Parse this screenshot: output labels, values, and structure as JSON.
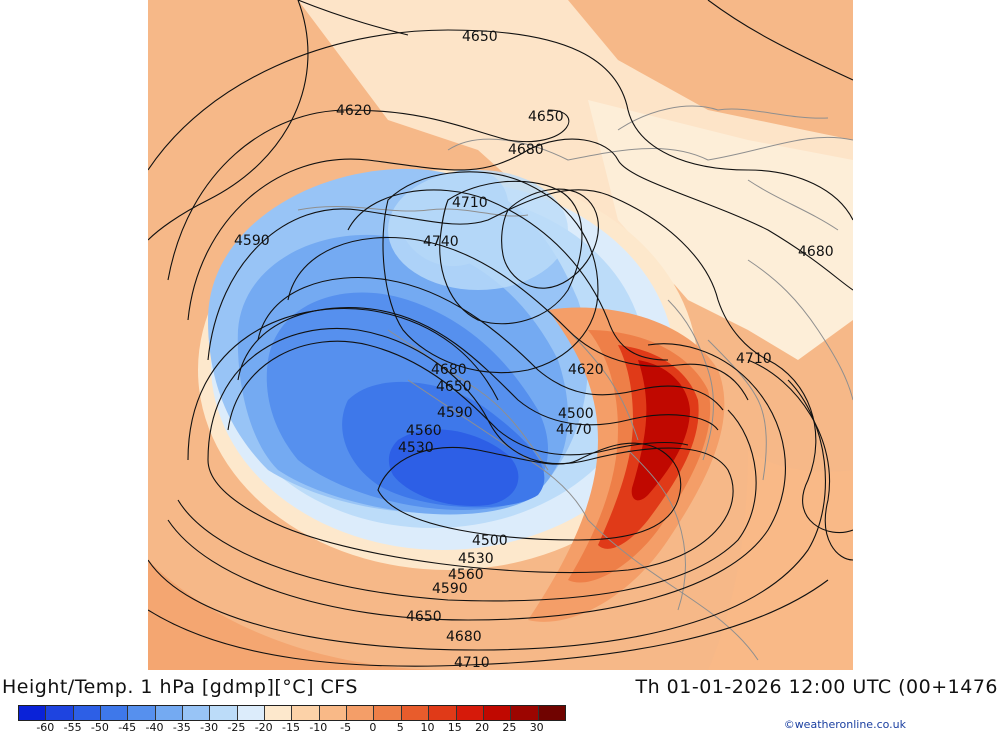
{
  "title": {
    "left": "Height/Temp. 1 hPa [gdmp][°C] CFS",
    "right": "Th 01-01-2026 12:00 UTC (00+1476"
  },
  "credit": "©weatheronline.co.uk",
  "colorbar": {
    "colors": [
      "#0a22d8",
      "#1e44e0",
      "#2d5fe6",
      "#3e78ea",
      "#5690ee",
      "#74aaf2",
      "#98c4f6",
      "#bcdcf9",
      "#dcecfb",
      "#fde8cc",
      "#fcd2a8",
      "#f9b987",
      "#f49e68",
      "#ee7f48",
      "#e85c2c",
      "#e03a18",
      "#d61a0a",
      "#c00800",
      "#9c0500",
      "#700300"
    ],
    "ticks": [
      "-60",
      "-55",
      "-50",
      "-45",
      "-40",
      "-35",
      "-30",
      "-25",
      "-20",
      "-15",
      "-10",
      "-5",
      "0",
      "5",
      "10",
      "15",
      "20",
      "25",
      "30"
    ]
  },
  "contour_labels": [
    {
      "text": "4650"
    },
    {
      "text": "4620"
    },
    {
      "text": "4650"
    },
    {
      "text": "4680"
    },
    {
      "text": "4710"
    },
    {
      "text": "4740"
    },
    {
      "text": "4590"
    },
    {
      "text": "4680"
    },
    {
      "text": "4710"
    },
    {
      "text": "4680"
    },
    {
      "text": "4650"
    },
    {
      "text": "4620"
    },
    {
      "text": "4590"
    },
    {
      "text": "4500"
    },
    {
      "text": "4560"
    },
    {
      "text": "4470"
    },
    {
      "text": "4530"
    },
    {
      "text": "4500"
    },
    {
      "text": "4530"
    },
    {
      "text": "4560"
    },
    {
      "text": "4590"
    },
    {
      "text": "4650"
    },
    {
      "text": "4680"
    },
    {
      "text": "4710"
    }
  ]
}
